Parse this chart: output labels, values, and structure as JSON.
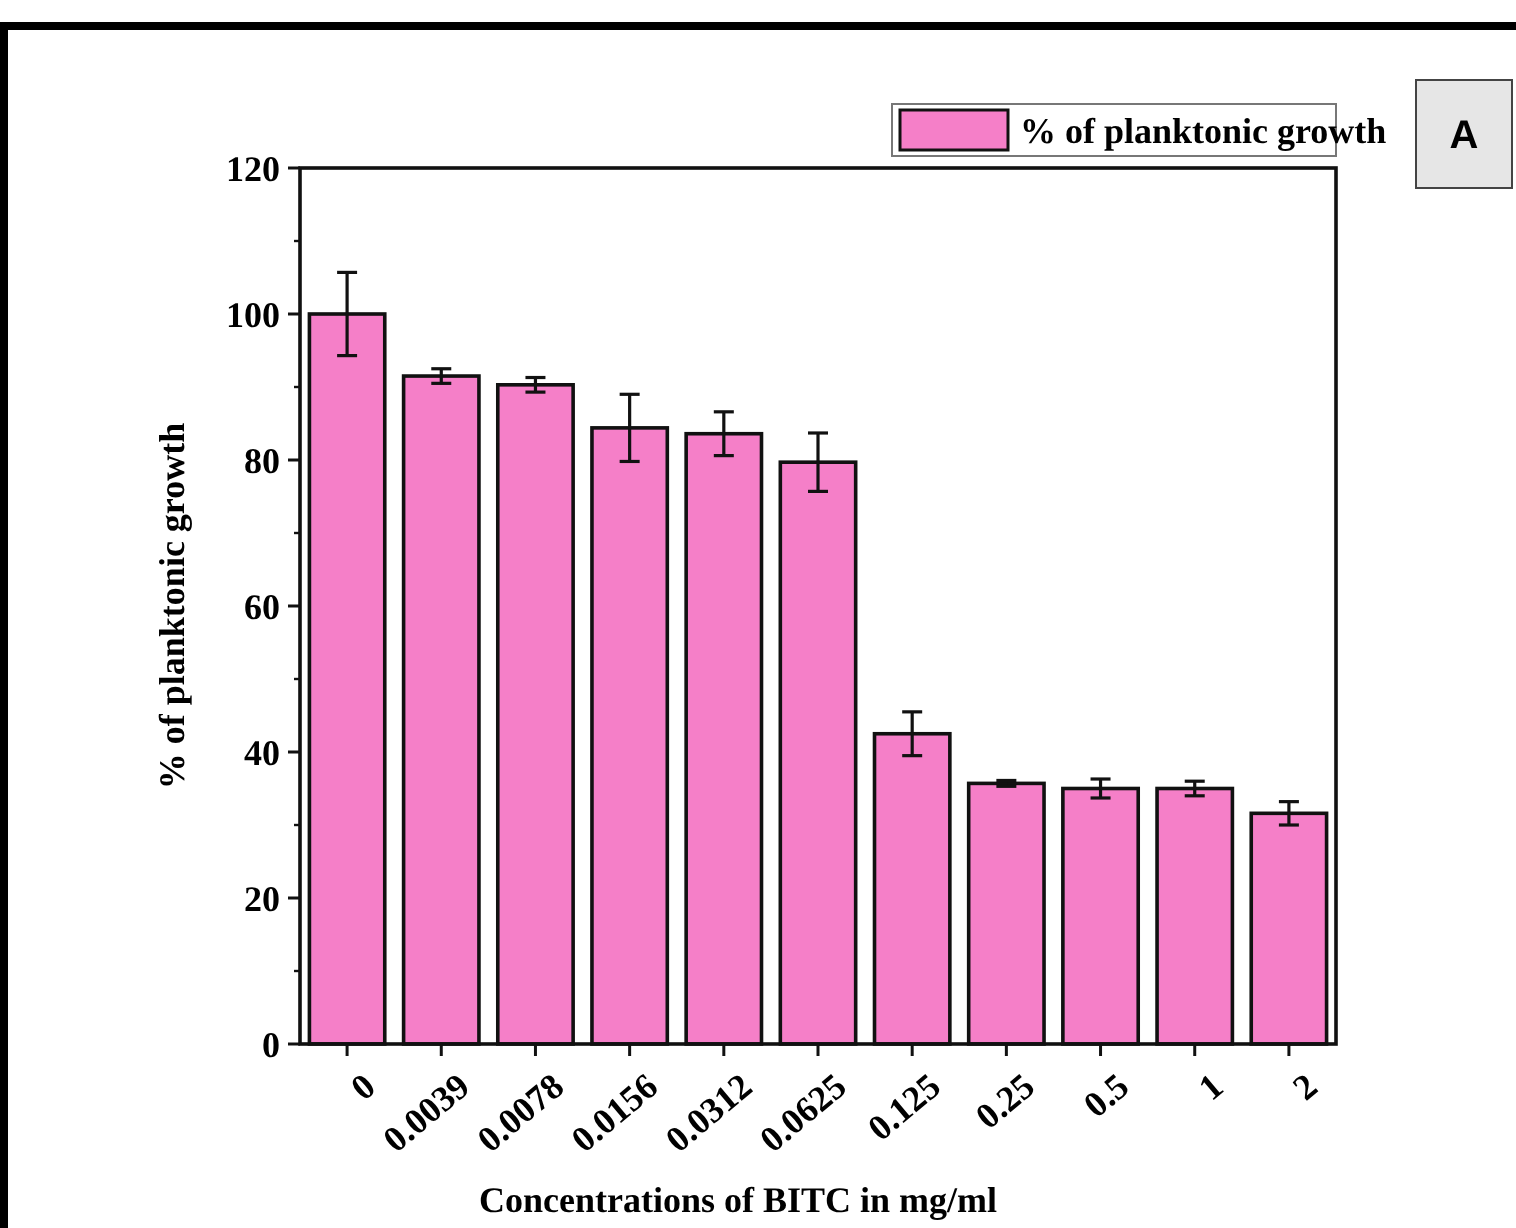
{
  "chart_data": {
    "type": "bar",
    "categories": [
      "0",
      "0.0039",
      "0.0078",
      "0.0156",
      "0.0312",
      "0.0625",
      "0.125",
      "0.25",
      "0.5",
      "1",
      "2"
    ],
    "series": [
      {
        "name": "% of planktonic growth",
        "color": "#f57fc8",
        "values": [
          100,
          91.5,
          90.3,
          84.4,
          83.6,
          79.7,
          42.5,
          35.7,
          35,
          35,
          31.6
        ],
        "errors": [
          5.7,
          1,
          1,
          4.6,
          3,
          4,
          3,
          0.4,
          1.3,
          1,
          1.6
        ]
      }
    ],
    "xlabel": "Concentrations of BITC in mg/ml",
    "ylabel": "% of planktonic growth",
    "ylim": [
      0,
      120
    ],
    "yticks": [
      0,
      20,
      40,
      60,
      80,
      100,
      120
    ],
    "legend": "top right",
    "annotations": [
      "A"
    ]
  }
}
